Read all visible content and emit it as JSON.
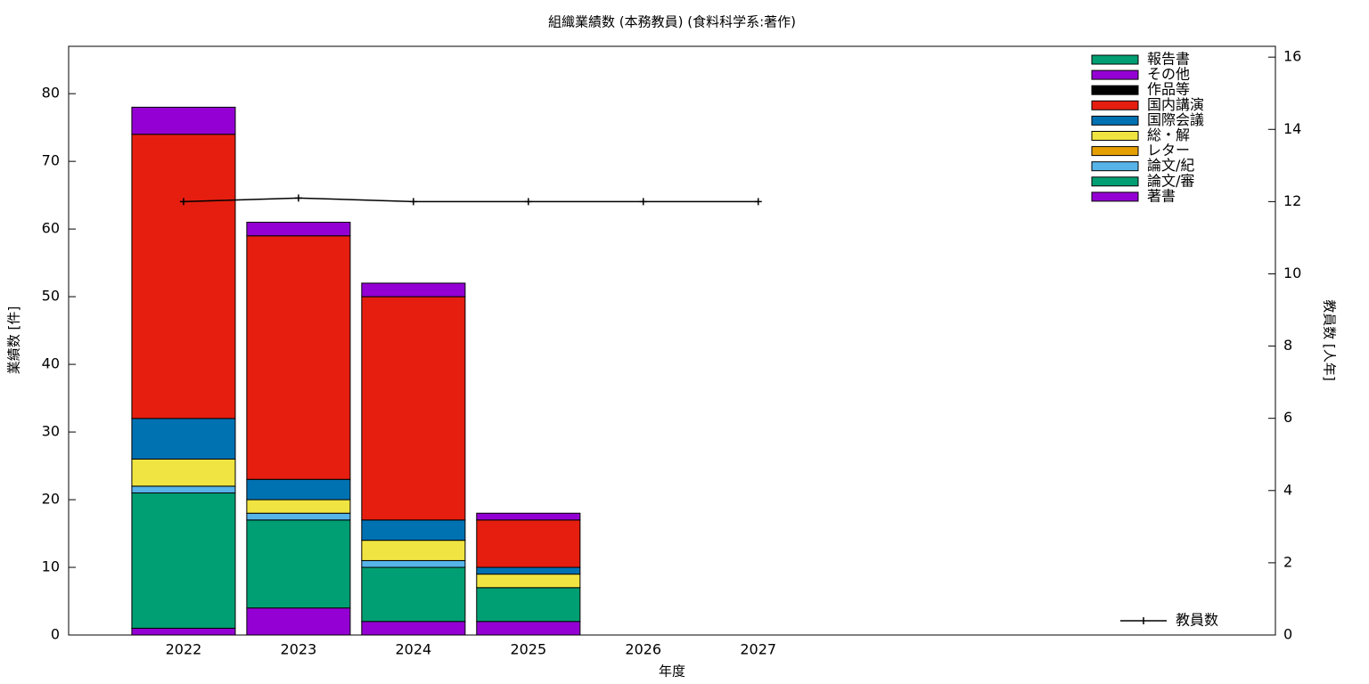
{
  "chart_data": {
    "type": "bar",
    "stacked": true,
    "title": "組織業績数 (本務教員) (食料科学系:著作)",
    "xlabel": "年度",
    "ylabel": "業績数 [件]",
    "y2label": "教員数 [人年]",
    "categories": [
      "2022",
      "2023",
      "2024",
      "2025",
      "2026",
      "2027"
    ],
    "ylim": [
      0,
      87
    ],
    "yticks": [
      0,
      10,
      20,
      30,
      40,
      50,
      60,
      70,
      80
    ],
    "y2lim": [
      0,
      16.3
    ],
    "y2ticks": [
      0,
      2,
      4,
      6,
      8,
      10,
      12,
      14,
      16
    ],
    "series": [
      {
        "name": "著書",
        "color": "#9400d3",
        "values": [
          1,
          4,
          2,
          2,
          null,
          null
        ]
      },
      {
        "name": "論文/審",
        "color": "#009e73",
        "values": [
          20,
          13,
          8,
          5,
          null,
          null
        ]
      },
      {
        "name": "論文/紀",
        "color": "#56b4e9",
        "values": [
          1,
          1,
          1,
          0,
          null,
          null
        ]
      },
      {
        "name": "レター",
        "color": "#e69f00",
        "values": [
          0,
          0,
          0,
          0,
          null,
          null
        ]
      },
      {
        "name": "総・解",
        "color": "#f0e442",
        "values": [
          4,
          2,
          3,
          2,
          null,
          null
        ]
      },
      {
        "name": "国際会議",
        "color": "#0072b2",
        "values": [
          6,
          3,
          3,
          1,
          null,
          null
        ]
      },
      {
        "name": "国内講演",
        "color": "#e51e10",
        "values": [
          42,
          36,
          33,
          7,
          null,
          null
        ]
      },
      {
        "name": "作品等",
        "color": "#000000",
        "values": [
          0,
          0,
          0,
          0,
          null,
          null
        ]
      },
      {
        "name": "その他",
        "color": "#9400d3",
        "values": [
          4,
          2,
          2,
          1,
          null,
          null
        ]
      },
      {
        "name": "報告書",
        "color": "#009e73",
        "values": [
          0,
          0,
          0,
          0,
          null,
          null
        ]
      },
      {
        "name": "教員数",
        "color": "#000000",
        "axis": "y2",
        "values": [
          12,
          12.1,
          12,
          12,
          12,
          12
        ]
      }
    ]
  }
}
